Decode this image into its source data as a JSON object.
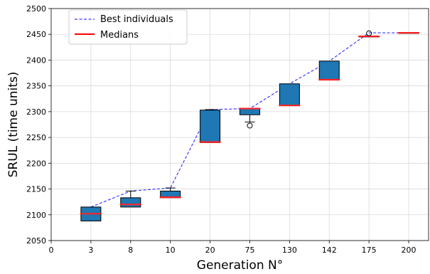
{
  "chart_data": {
    "type": "box",
    "xlabel": "Generation N°",
    "ylabel": "SRUL (time units)",
    "ylim": [
      2050,
      2500
    ],
    "yticks": [
      2050,
      2100,
      2150,
      2200,
      2250,
      2300,
      2350,
      2400,
      2450,
      2500
    ],
    "xtick_zero": "0",
    "categories": [
      "3",
      "8",
      "10",
      "20",
      "75",
      "130",
      "142",
      "175",
      "200"
    ],
    "grid": true,
    "legend_position": "top-left",
    "legend": [
      {
        "name": "Best individuals",
        "style": "dashed-line",
        "color": "#3b3bff"
      },
      {
        "name": "Medians",
        "style": "solid-line",
        "color": "#ff0000"
      }
    ],
    "box_color": "#1f77b4",
    "median_color": "#ff2020",
    "best_line_color": "#3b3bff",
    "boxes": [
      {
        "category": "3",
        "q1": 2088,
        "q3": 2115,
        "median": 2102,
        "whisker_low": 2088,
        "whisker_high": 2115,
        "fliers": []
      },
      {
        "category": "8",
        "q1": 2115,
        "q3": 2133,
        "median": 2120,
        "whisker_low": 2115,
        "whisker_high": 2146,
        "fliers": []
      },
      {
        "category": "10",
        "q1": 2133,
        "q3": 2146,
        "median": 2134,
        "whisker_low": 2133,
        "whisker_high": 2152,
        "fliers": []
      },
      {
        "category": "20",
        "q1": 2240,
        "q3": 2303,
        "median": 2241,
        "whisker_low": 2240,
        "whisker_high": 2304,
        "fliers": []
      },
      {
        "category": "75",
        "q1": 2294,
        "q3": 2306,
        "median": 2306,
        "whisker_low": 2280,
        "whisker_high": 2306,
        "fliers": [
          2273
        ]
      },
      {
        "category": "130",
        "q1": 2312,
        "q3": 2354,
        "median": 2312,
        "whisker_low": 2312,
        "whisker_high": 2354,
        "fliers": []
      },
      {
        "category": "142",
        "q1": 2362,
        "q3": 2398,
        "median": 2362,
        "whisker_low": 2362,
        "whisker_high": 2398,
        "fliers": []
      },
      {
        "category": "175",
        "q1": 2446,
        "q3": 2446,
        "median": 2446,
        "whisker_low": 2446,
        "whisker_high": 2446,
        "fliers": [
          2452
        ]
      },
      {
        "category": "200",
        "q1": 2453,
        "q3": 2453,
        "median": 2453,
        "whisker_low": 2453,
        "whisker_high": 2453,
        "fliers": []
      }
    ],
    "best_individuals": [
      2115,
      2146,
      2152,
      2304,
      2306,
      2354,
      2398,
      2453,
      2453
    ]
  }
}
